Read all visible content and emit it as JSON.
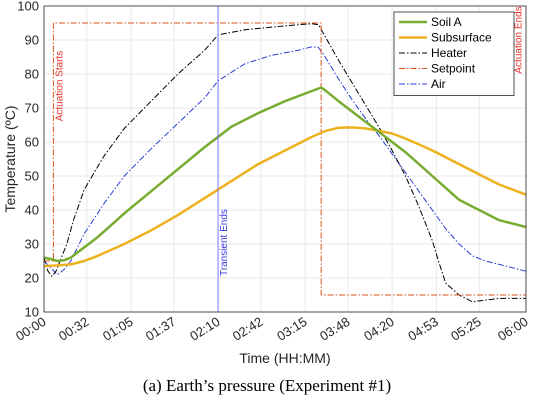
{
  "caption": "(a) Earth’s pressure (Experiment #1)",
  "chart_data": {
    "type": "line",
    "xlabel": "Time (HH:MM)",
    "ylabel": "Temperature (ºC)",
    "ylim": [
      10,
      100
    ],
    "xlim": [
      0,
      360
    ],
    "grid": true,
    "legend_position": "top-right",
    "x_ticks": [
      {
        "value": 0,
        "label": "00:00"
      },
      {
        "value": 32,
        "label": "00:32"
      },
      {
        "value": 65,
        "label": "01:05"
      },
      {
        "value": 97,
        "label": "01:37"
      },
      {
        "value": 130,
        "label": "02:10"
      },
      {
        "value": 162,
        "label": "02:42"
      },
      {
        "value": 195,
        "label": "03:15"
      },
      {
        "value": 227,
        "label": "03:48"
      },
      {
        "value": 260,
        "label": "04:20"
      },
      {
        "value": 293,
        "label": "04:53"
      },
      {
        "value": 325,
        "label": "05:25"
      },
      {
        "value": 360,
        "label": "06:00"
      }
    ],
    "y_ticks": [
      10,
      20,
      30,
      40,
      50,
      60,
      70,
      80,
      90,
      100
    ],
    "series": [
      {
        "name": "Soil A",
        "color": "#77ac30",
        "style": "solid",
        "width": 2.5,
        "x": [
          0,
          5,
          10,
          15,
          20,
          25,
          30,
          40,
          60,
          80,
          100,
          120,
          140,
          160,
          180,
          200,
          207,
          210,
          220,
          230,
          240,
          250,
          260,
          270,
          280,
          290,
          300,
          310,
          320,
          330,
          340,
          350,
          360
        ],
        "y": [
          26,
          25.6,
          25,
          25.2,
          26,
          27.5,
          29,
          32,
          39,
          45.5,
          52,
          58.5,
          64.5,
          68.5,
          72,
          75,
          76,
          75.2,
          72,
          69,
          66,
          63,
          60,
          57,
          53.5,
          50,
          46.5,
          43,
          41,
          39,
          37,
          36,
          35
        ]
      },
      {
        "name": "Subsurface",
        "color": "#edb120",
        "style": "solid",
        "width": 2.5,
        "x": [
          0,
          10,
          20,
          30,
          40,
          60,
          80,
          100,
          120,
          140,
          160,
          180,
          200,
          210,
          220,
          230,
          240,
          250,
          260,
          270,
          280,
          290,
          300,
          310,
          320,
          330,
          340,
          350,
          360
        ],
        "y": [
          23.5,
          23.7,
          24,
          25,
          26.5,
          30,
          34,
          38.5,
          43.5,
          48.5,
          53.5,
          57.5,
          61.5,
          63.2,
          64.2,
          64.3,
          64,
          63.3,
          62.5,
          61,
          59.3,
          57.5,
          55.5,
          53.5,
          51.5,
          49.5,
          47.5,
          46,
          44.5
        ]
      },
      {
        "name": "Heater",
        "color": "#000000",
        "style": "dashdot",
        "width": 1,
        "x": [
          0,
          3,
          6,
          9,
          13,
          17,
          22,
          30,
          45,
          60,
          80,
          100,
          120,
          130,
          150,
          170,
          190,
          200,
          205,
          210,
          220,
          230,
          240,
          250,
          260,
          270,
          280,
          290,
          295,
          300,
          310,
          320,
          330,
          340,
          350,
          360
        ],
        "y": [
          26,
          22,
          20.5,
          22,
          26,
          30,
          37,
          46,
          56,
          64,
          72,
          80,
          87,
          91.5,
          93,
          93.8,
          94.5,
          94.8,
          94.5,
          91,
          84,
          77.5,
          71,
          64.5,
          57.5,
          50,
          41,
          31,
          24.5,
          18.5,
          15,
          13,
          13.5,
          14,
          14,
          14
        ]
      },
      {
        "name": "Setpoint",
        "color": "#d95319",
        "style": "dashdot",
        "width": 1,
        "x": [
          0,
          7,
          7.01,
          207,
          207.01,
          360
        ],
        "y": [
          25,
          25,
          95,
          95,
          15,
          15
        ]
      },
      {
        "name": "Air",
        "color": "#2a3cd6",
        "style": "dashdot",
        "width": 1,
        "x": [
          0,
          5,
          10,
          15,
          20,
          30,
          45,
          60,
          80,
          100,
          120,
          130,
          150,
          170,
          190,
          200,
          205,
          210,
          220,
          230,
          240,
          250,
          260,
          270,
          280,
          290,
          300,
          310,
          320,
          330,
          340,
          350,
          360
        ],
        "y": [
          25,
          23,
          21,
          22.5,
          25,
          33,
          42,
          50,
          58,
          65.5,
          73,
          78,
          83,
          85.5,
          87,
          88,
          87.8,
          85,
          78.5,
          72.5,
          67,
          62,
          56.5,
          51,
          45.5,
          40,
          34.5,
          30,
          26.5,
          25,
          24,
          23,
          22
        ]
      }
    ],
    "annotations": [
      {
        "text": "Actuation Starts",
        "x": 7,
        "color": "#e8302a"
      },
      {
        "text": "Transient Ends",
        "x": 130,
        "color": "#3a3ae0"
      },
      {
        "text": "Actuation Ends",
        "x": 355,
        "color": "#e8302a"
      }
    ],
    "vertical_lines": [
      {
        "x": 130,
        "color": "#6b6bff"
      }
    ]
  }
}
